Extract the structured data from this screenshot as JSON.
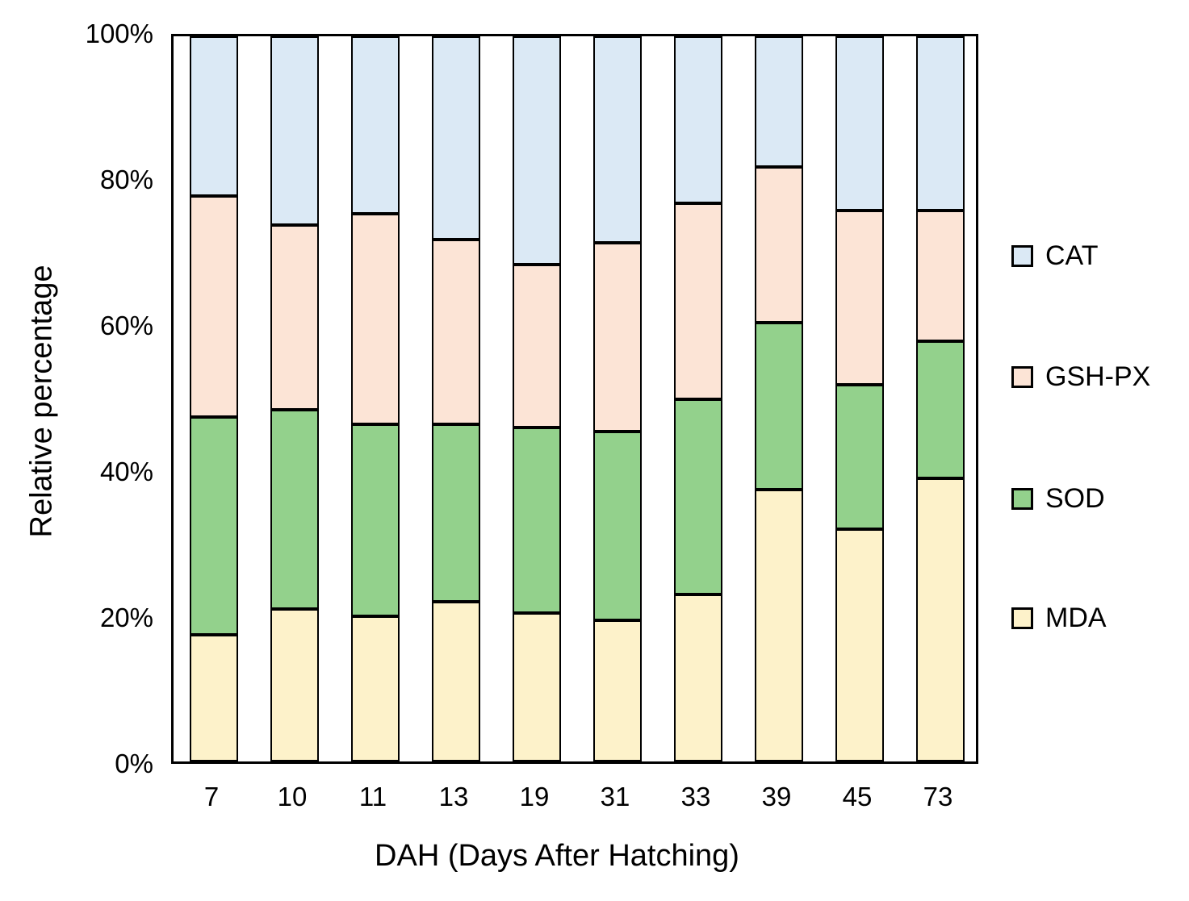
{
  "chart_data": {
    "type": "bar",
    "stacked": true,
    "percent_stacked": true,
    "title": "",
    "xlabel": "DAH (Days After Hatching)",
    "ylabel": "Relative percentage",
    "categories": [
      "7",
      "10",
      "11",
      "13",
      "19",
      "31",
      "33",
      "39",
      "45",
      "73"
    ],
    "series": [
      {
        "name": "MDA",
        "color": "#fdf2ca",
        "values": [
          17.5,
          21,
          20,
          22,
          20.5,
          19.5,
          23,
          37.5,
          32,
          39
        ]
      },
      {
        "name": "SOD",
        "color": "#93d18c",
        "values": [
          30,
          27.5,
          26.5,
          24.5,
          25.5,
          26,
          27,
          23,
          20,
          19
        ]
      },
      {
        "name": "GSH-PX",
        "color": "#fce4d6",
        "values": [
          30.5,
          25.5,
          29,
          25.5,
          22.5,
          26,
          27,
          21.5,
          24,
          18
        ]
      },
      {
        "name": "CAT",
        "color": "#dbe9f5",
        "values": [
          22,
          26,
          24.5,
          28,
          31.5,
          28.5,
          23,
          18,
          24,
          24
        ]
      }
    ],
    "ylim": [
      0,
      100
    ],
    "y_ticks": [
      "0%",
      "20%",
      "40%",
      "60%",
      "80%",
      "100%"
    ],
    "grid": false,
    "legend": {
      "position": "right",
      "entries": [
        "CAT",
        "GSH-PX",
        "SOD",
        "MDA"
      ]
    },
    "bar_border_color": "#000000",
    "axis_color": "#000000"
  }
}
